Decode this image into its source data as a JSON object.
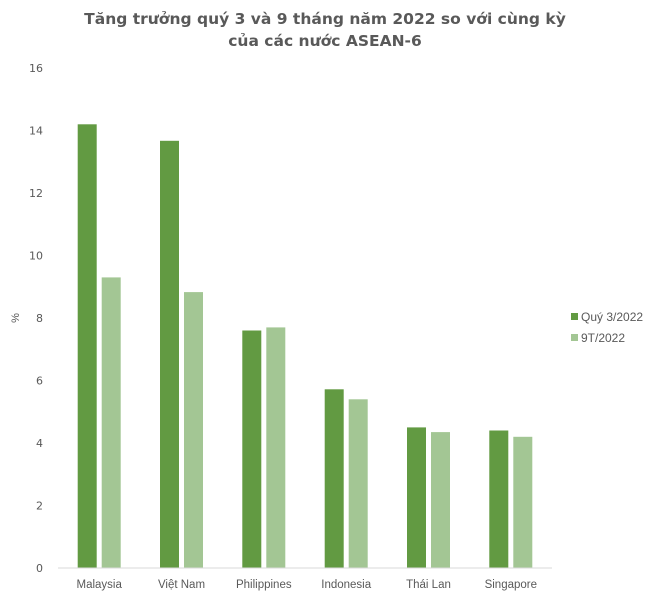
{
  "chart_data": {
    "type": "bar",
    "title": "Tăng trưởng quý 3 và 9 tháng năm 2022 so với cùng kỳ của các nước ASEAN-6",
    "title_lines": [
      "Tăng trưởng quý 3 và 9 tháng năm 2022 so với cùng kỳ",
      "của các nước ASEAN-6"
    ],
    "xlabel": "",
    "ylabel": "%",
    "ylim": [
      0,
      16
    ],
    "yticks": [
      0,
      2,
      4,
      6,
      8,
      10,
      12,
      14,
      16
    ],
    "grid": false,
    "legend_position": "right",
    "categories": [
      "Malaysia",
      "Việt Nam",
      "Philippines",
      "Indonesia",
      "Thái Lan",
      "Singapore"
    ],
    "series": [
      {
        "name": "Quý 3/2022",
        "color": "#629a42",
        "values": [
          14.2,
          13.67,
          7.6,
          5.72,
          4.5,
          4.4
        ]
      },
      {
        "name": "9T/2022",
        "color": "#a3c694",
        "values": [
          9.3,
          8.83,
          7.7,
          5.4,
          4.35,
          4.2
        ]
      }
    ]
  }
}
